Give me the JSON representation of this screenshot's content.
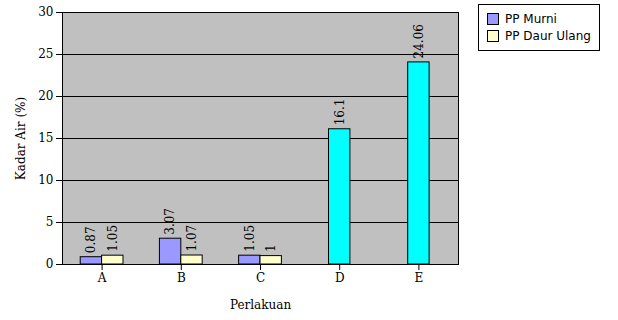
{
  "chart_data": {
    "type": "bar",
    "x_label": "Perlakuan",
    "y_label": "Kadar Air (%)",
    "categories": [
      "A",
      "B",
      "C",
      "D",
      "E"
    ],
    "series": [
      {
        "name": "PP Murni",
        "color": "#9999ff",
        "values": [
          0.87,
          3.07,
          1.05,
          null,
          null
        ]
      },
      {
        "name": "PP Daur Ulang",
        "color": "#ffffcc",
        "values": [
          1.05,
          1.07,
          1,
          null,
          null
        ]
      },
      {
        "color": "#00ffff",
        "values": [
          null,
          null,
          null,
          16.1,
          24.06
        ]
      }
    ],
    "ylim": [
      0,
      30
    ],
    "yticks": [
      0,
      5,
      10,
      15,
      20,
      25,
      30
    ],
    "grid": true,
    "legend": "right",
    "data_labels": true
  }
}
